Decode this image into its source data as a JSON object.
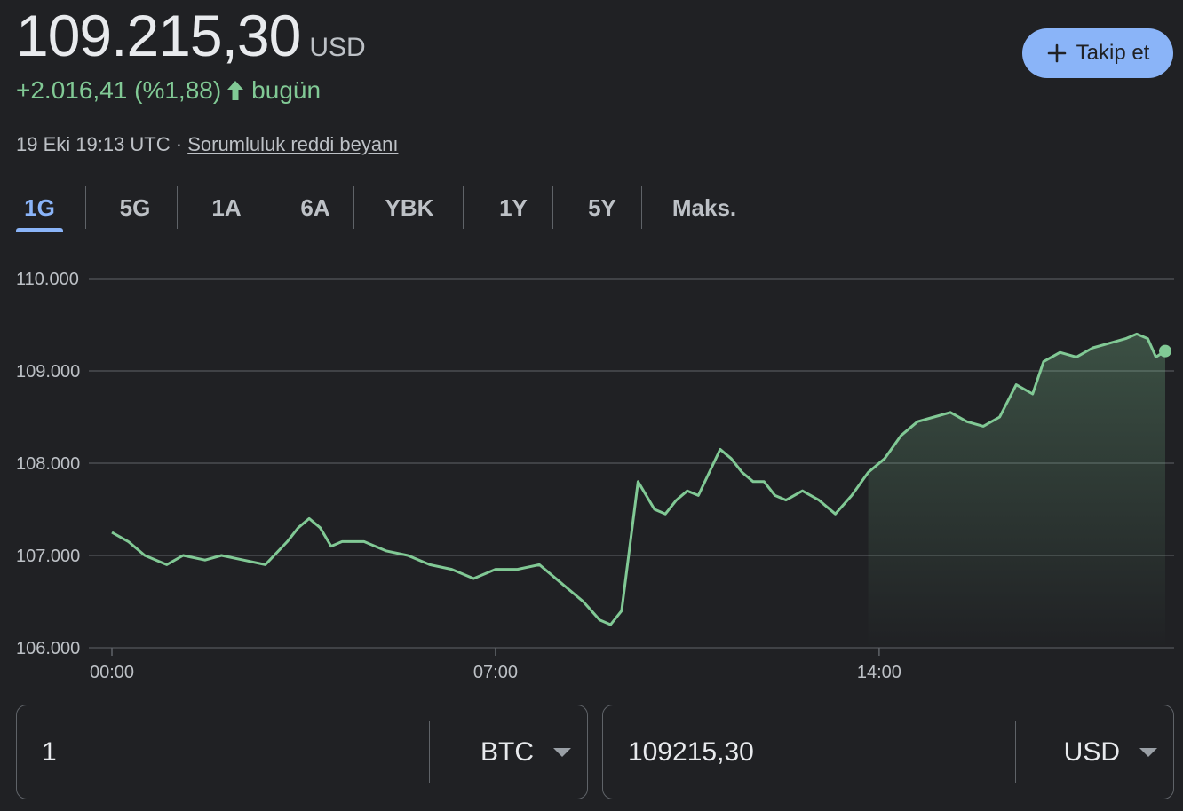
{
  "quote": {
    "price": "109.215,30",
    "currency": "USD",
    "change": "+2.016,41 (%1,88)",
    "change_suffix": "bugün",
    "timestamp": "19 Eki 19:13 UTC ·",
    "disclaimer": "Sorumluluk reddi beyanı"
  },
  "follow_button": {
    "label": "Takip et"
  },
  "tabs": [
    {
      "label": "1G",
      "active": true
    },
    {
      "label": "5G",
      "active": false
    },
    {
      "label": "1A",
      "active": false
    },
    {
      "label": "6A",
      "active": false
    },
    {
      "label": "YBK",
      "active": false
    },
    {
      "label": "1Y",
      "active": false
    },
    {
      "label": "5Y",
      "active": false
    },
    {
      "label": "Maks.",
      "active": false
    }
  ],
  "colors": {
    "background": "#202124",
    "accent": "#8ab4f8",
    "positive": "#81c995",
    "gridline": "#5f6368",
    "text_secondary": "#bdc1c6"
  },
  "chart_data": {
    "type": "line",
    "x_unit": "hours",
    "xlim": [
      0,
      19.22
    ],
    "ylim": [
      106000,
      110000
    ],
    "y_ticks": [
      110000,
      109000,
      108000,
      107000,
      106000
    ],
    "y_tick_labels": [
      "110.000",
      "109.000",
      "108.000",
      "107.000",
      "106.000"
    ],
    "x_ticks": [
      0,
      7,
      14
    ],
    "x_tick_labels": [
      "00:00",
      "07:00",
      "14:00"
    ],
    "grid": true,
    "area_fill_from_hour": 13.7,
    "series": [
      {
        "name": "",
        "x": [
          0.0,
          0.3,
          0.6,
          1.0,
          1.3,
          1.7,
          2.0,
          2.4,
          2.8,
          3.2,
          3.4,
          3.6,
          3.8,
          4.0,
          4.2,
          4.6,
          5.0,
          5.4,
          5.8,
          6.2,
          6.6,
          7.0,
          7.4,
          7.8,
          8.2,
          8.6,
          8.9,
          9.1,
          9.3,
          9.6,
          9.9,
          10.1,
          10.3,
          10.5,
          10.7,
          10.9,
          11.1,
          11.3,
          11.5,
          11.7,
          11.9,
          12.1,
          12.3,
          12.6,
          12.9,
          13.2,
          13.5,
          13.8,
          14.1,
          14.4,
          14.7,
          15.0,
          15.3,
          15.6,
          15.9,
          16.2,
          16.5,
          16.8,
          17.0,
          17.3,
          17.6,
          17.9,
          18.2,
          18.5,
          18.7,
          18.9,
          19.05,
          19.22
        ],
        "y": [
          107250,
          107150,
          107000,
          106900,
          107000,
          106950,
          107000,
          106950,
          106900,
          107150,
          107300,
          107400,
          107300,
          107100,
          107150,
          107150,
          107050,
          107000,
          106900,
          106850,
          106750,
          106850,
          106850,
          106900,
          106700,
          106500,
          106300,
          106250,
          106400,
          107800,
          107500,
          107450,
          107600,
          107700,
          107650,
          107900,
          108150,
          108050,
          107900,
          107800,
          107800,
          107650,
          107600,
          107700,
          107600,
          107450,
          107650,
          107900,
          108050,
          108300,
          108450,
          108500,
          108550,
          108450,
          108400,
          108500,
          108850,
          108750,
          109100,
          109200,
          109150,
          109250,
          109300,
          109350,
          109400,
          109350,
          109150,
          109215
        ]
      }
    ]
  },
  "converter": {
    "from_value": "1",
    "from_currency": "BTC",
    "to_value": "109215,30",
    "to_currency": "USD"
  }
}
